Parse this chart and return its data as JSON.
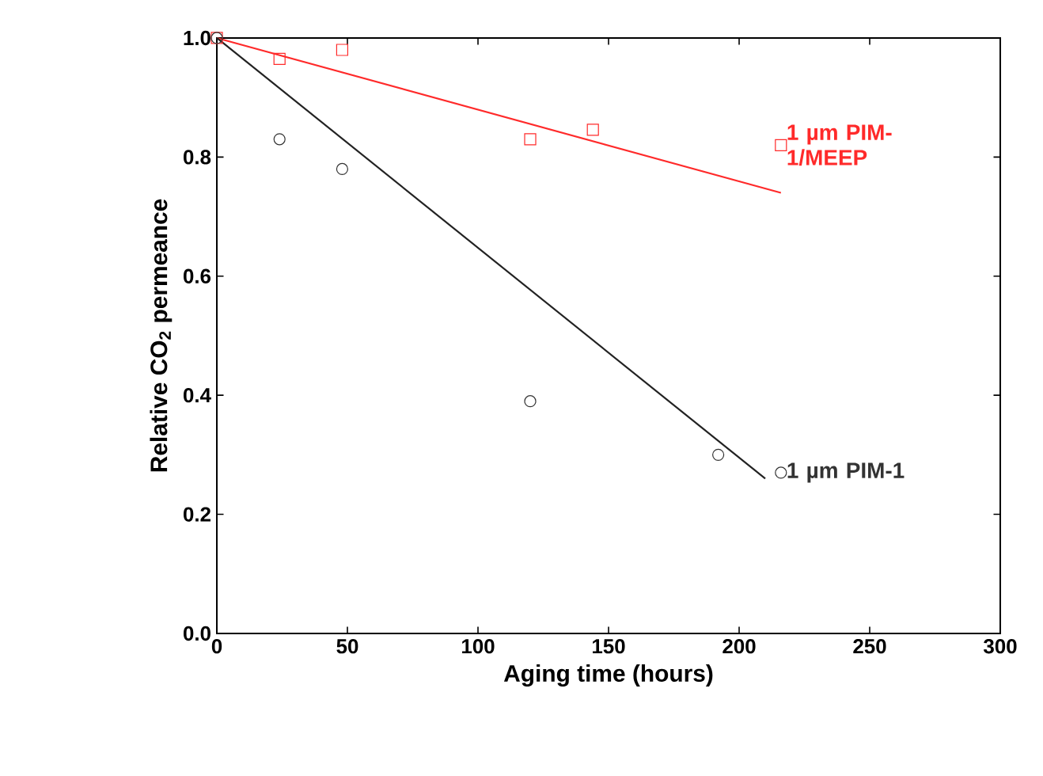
{
  "chart_data": {
    "type": "scatter",
    "xlabel": "Aging time (hours)",
    "ylabel": "Relative CO$_{2}$ permeance",
    "xlim": [
      0,
      300
    ],
    "ylim": [
      0,
      1.0
    ],
    "xticks": [
      0,
      50,
      100,
      150,
      200,
      250,
      300
    ],
    "yticks": [
      {
        "value": 0,
        "label": "0.0"
      },
      {
        "value": 0.2,
        "label": "0.2"
      },
      {
        "value": 0.4,
        "label": "0.4"
      },
      {
        "value": 0.6,
        "label": "0.6"
      },
      {
        "value": 0.8,
        "label": "0.8"
      },
      {
        "value": 1,
        "label": "1.0"
      }
    ],
    "grid": false,
    "legend": false,
    "series": [
      {
        "name": "1 µm PIM-1/MEEP",
        "color": "#ff2a2a",
        "marker": "square",
        "x": [
          0,
          24,
          48,
          120,
          144,
          216
        ],
        "values": [
          1.0,
          0.965,
          0.98,
          0.83,
          0.846,
          0.82
        ]
      },
      {
        "name": "1 µm PIM-1",
        "color": "#333333",
        "marker": "circle",
        "x": [
          0,
          24,
          48,
          120,
          192,
          216
        ],
        "values": [
          1.0,
          0.83,
          0.78,
          0.39,
          0.3,
          0.27
        ]
      },
      {
        "type": "line",
        "color": "#ff2a2a",
        "marker": "none",
        "x": [
          0,
          216
        ],
        "values": [
          1.0,
          0.74
        ]
      },
      {
        "type": "line",
        "color": "#222222",
        "marker": "none",
        "x": [
          0,
          210
        ],
        "values": [
          1.0,
          0.26
        ]
      }
    ]
  }
}
